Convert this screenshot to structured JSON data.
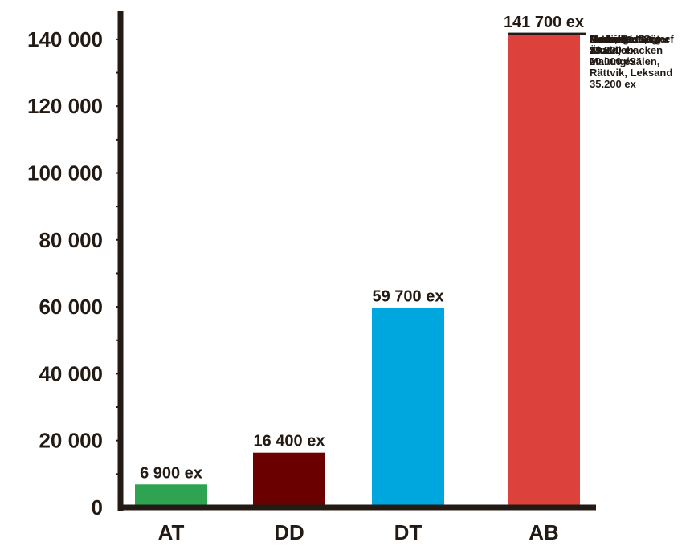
{
  "chart_data": {
    "type": "bar",
    "title": "",
    "xlabel": "",
    "ylabel": "",
    "ylim": [
      0,
      150000
    ],
    "y_ticks": [
      0,
      20000,
      40000,
      60000,
      80000,
      100000,
      120000,
      140000
    ],
    "y_tick_labels": [
      "0",
      "20 000",
      "40 000",
      "60 000",
      "80 000",
      "100 000",
      "120 000",
      "140 000"
    ],
    "grid": false,
    "categories": [
      "AT",
      "DD",
      "DT",
      "AB"
    ],
    "values": [
      6900,
      16400,
      59700,
      141700
    ],
    "value_labels": [
      "6 900 ex",
      "16 400 ex",
      "59 700 ex",
      "141 700 ex"
    ],
    "colors": [
      "#2ea453",
      "#6b0000",
      "#00a6de",
      "#dc413c"
    ],
    "stack_segments": {
      "category": "AB",
      "segments": [
        {
          "lines": [
            "Hedemora/Säter",
            "13.200 ex"
          ],
          "value": 13200
        },
        {
          "lines": [
            "Aveta/Norberg",
            "15.700 ex"
          ],
          "value": 15700
        },
        {
          "lines": [
            "Ludvika/",
            "Smedjebacken",
            "20.000 ex"
          ],
          "value": 20000
        },
        {
          "lines": [
            "Falun 28.600 ex"
          ],
          "value": 28600
        },
        {
          "lines": [
            "Borlänge/Gagnef",
            "29.000 ex"
          ],
          "value": 29000
        },
        {
          "lines": [
            "Mora, Orsa,",
            "Älvdalen,",
            "Malung/Sälen,",
            "Rättvik, Leksand",
            "35.200 ex"
          ],
          "value": 35200
        }
      ]
    }
  }
}
